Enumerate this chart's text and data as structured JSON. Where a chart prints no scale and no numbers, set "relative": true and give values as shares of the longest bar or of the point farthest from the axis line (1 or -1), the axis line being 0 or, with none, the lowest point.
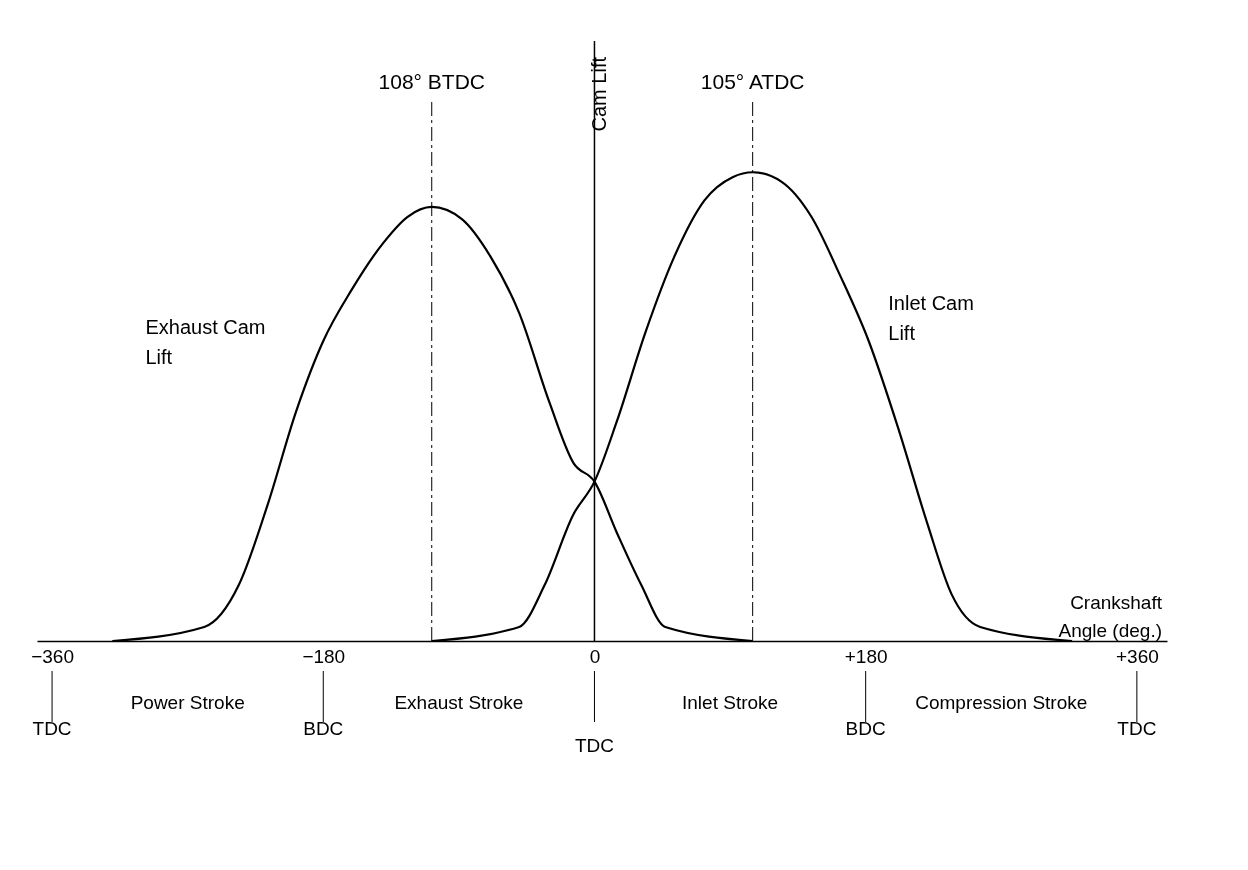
{
  "chart_data": {
    "type": "line",
    "relative": true,
    "xlabel": "Crankshaft Angle (deg.)",
    "ylabel": "Cam Lift",
    "xlim": [
      -370,
      380
    ],
    "xticks": [
      {
        "value": -360,
        "label": "−360"
      },
      {
        "value": -180,
        "label": "−180"
      },
      0,
      {
        "value": 180,
        "label": "+180"
      },
      {
        "value": 360,
        "label": "+360"
      }
    ],
    "series": [
      {
        "name": "Exhaust Cam Lift",
        "color": "#000000",
        "x": [
          -320,
          -259,
          -236,
          -217,
          -198,
          -180,
          -161,
          -140,
          -124,
          -108,
          -88,
          -69,
          -50,
          -30,
          -14,
          0,
          15,
          31,
          47,
          105
        ],
        "values": [
          0,
          0.03,
          0.12,
          0.29,
          0.49,
          0.64,
          0.75,
          0.85,
          0.905,
          0.926,
          0.9,
          0.82,
          0.7,
          0.51,
          0.38,
          0.34,
          0.23,
          0.12,
          0.03,
          0
        ]
      },
      {
        "name": "Inlet Cam Lift",
        "color": "#000000",
        "x": [
          -108,
          -50,
          -33,
          -14,
          0,
          15,
          34,
          53,
          73,
          92,
          105,
          124,
          144,
          163,
          182,
          202,
          221,
          237,
          256,
          317
        ],
        "values": [
          0,
          0.03,
          0.12,
          0.27,
          0.34,
          0.47,
          0.66,
          0.82,
          0.94,
          0.99,
          1,
          0.98,
          0.905,
          0.78,
          0.64,
          0.45,
          0.25,
          0.1,
          0.03,
          0
        ]
      }
    ],
    "ref_lines": [
      {
        "axis": "x",
        "value": -108,
        "label": "108° BTDC",
        "line_style": "dashed"
      },
      {
        "axis": "x",
        "value": 105,
        "label": "105° ATDC",
        "line_style": "dashed"
      }
    ],
    "annotations": [
      "Power Stroke",
      "Exhaust Stroke",
      "Inlet Stroke",
      "Compression Stroke",
      "TDC",
      "BDC",
      "TDC",
      "BDC",
      "TDC"
    ],
    "grid": "x",
    "marker": "none",
    "line_style": "solid"
  }
}
